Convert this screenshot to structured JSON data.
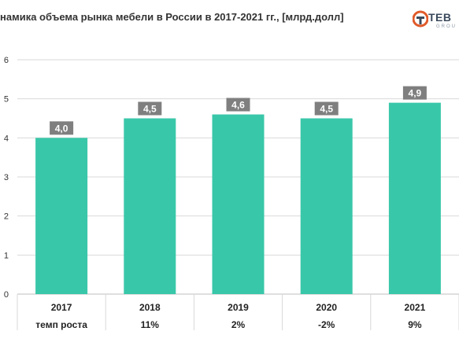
{
  "header": {
    "title": "намика объема рынка мебели в России в 2017-2021 гг., [млрд.долл]",
    "logo_text": "ТЕВ",
    "logo_sub": "GROU"
  },
  "chart_data": {
    "type": "bar",
    "title": "намика объема рынка мебели в России в 2017-2021 гг., [млрд.долл]",
    "categories": [
      "2017",
      "2018",
      "2019",
      "2020",
      "2021"
    ],
    "values": [
      4.0,
      4.5,
      4.6,
      4.5,
      4.9
    ],
    "data_labels": [
      "4,0",
      "4,5",
      "4,6",
      "4,5",
      "4,9"
    ],
    "ylim": [
      0,
      6
    ],
    "yticks": [
      0,
      1,
      2,
      3,
      4,
      5,
      6
    ],
    "grid": true,
    "bar_color": "#39c7a9",
    "label_bg_color": "#7f7f7f",
    "growth_row": {
      "label": "темп роста",
      "values": [
        "",
        "11%",
        "2%",
        "-2%",
        "9%"
      ]
    }
  }
}
